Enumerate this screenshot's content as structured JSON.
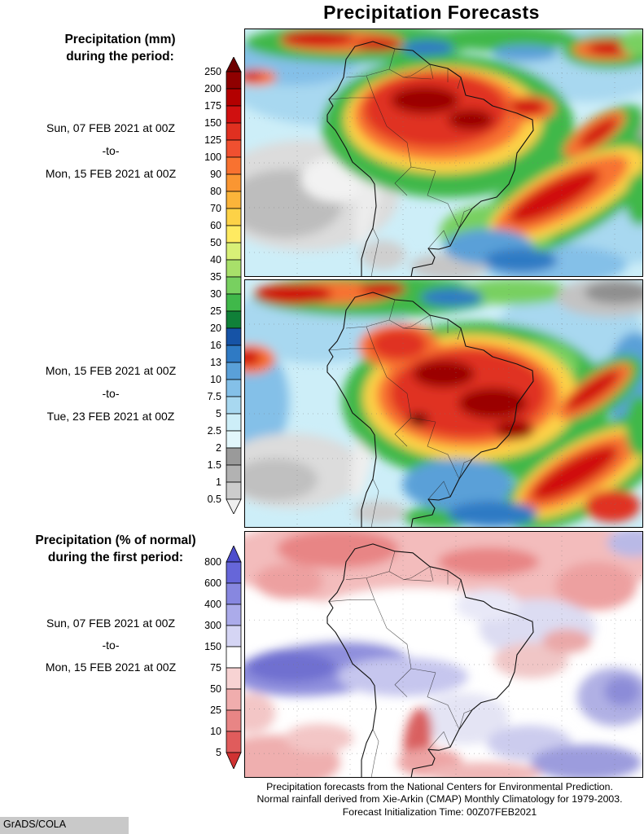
{
  "title": "Precipitation Forecasts",
  "left_panel": {
    "mm_heading": {
      "line1": "Precipitation (mm)",
      "line2": "during the period:"
    },
    "period1": {
      "from": "Sun, 07 FEB 2021 at 00Z",
      "sep": "-to-",
      "to": "Mon, 15 FEB 2021 at 00Z"
    },
    "period2": {
      "from": "Mon, 15 FEB 2021 at 00Z",
      "sep": "-to-",
      "to": "Tue, 23 FEB 2021 at 00Z"
    },
    "pct_heading": {
      "line1": "Precipitation (% of normal)",
      "line2": "during the first period:"
    },
    "period3": {
      "from": "Sun, 07 FEB 2021 at 00Z",
      "sep": "-to-",
      "to": "Mon, 15 FEB 2021 at 00Z"
    }
  },
  "colorbar_mm": {
    "labels": [
      "250",
      "200",
      "175",
      "150",
      "125",
      "100",
      "90",
      "80",
      "70",
      "60",
      "50",
      "40",
      "35",
      "30",
      "25",
      "20",
      "16",
      "13",
      "10",
      "7.5",
      "5",
      "2.5",
      "2",
      "1.5",
      "1",
      "0.5"
    ],
    "colors": [
      "#6e0000",
      "#8f0000",
      "#b30000",
      "#d01010",
      "#e03020",
      "#f05030",
      "#f87230",
      "#fa9632",
      "#fbb43a",
      "#fdd247",
      "#feea61",
      "#d8f077",
      "#a8e06a",
      "#78d060",
      "#40b84a",
      "#108038",
      "#1653a6",
      "#2f7ac4",
      "#5aa0d8",
      "#84c0e8",
      "#a8d8f0",
      "#cdeef8",
      "#e2f6fb",
      "#9a9a9a",
      "#b2b2b2",
      "#cccccc",
      "#efefef"
    ]
  },
  "colorbar_pct": {
    "labels": [
      "800",
      "600",
      "400",
      "300",
      "150",
      "75",
      "50",
      "25",
      "10",
      "5"
    ],
    "colors": [
      "#4d4dcc",
      "#6666d9",
      "#8787e0",
      "#ababea",
      "#d5d5f4",
      "#ffffff",
      "#f7d3d3",
      "#f0adad",
      "#e88585",
      "#e05c5c",
      "#d03232"
    ]
  },
  "footer": {
    "line1": "Precipitation forecasts from the National Centers for Environmental Prediction.",
    "line2": "Normal rainfall derived from Xie-Arkin (CMAP) Monthly Climatology for 1979-2003.",
    "line3": "Forecast Initialization Time: 00Z07FEB2021"
  },
  "credit": "GrADS/COLA"
}
